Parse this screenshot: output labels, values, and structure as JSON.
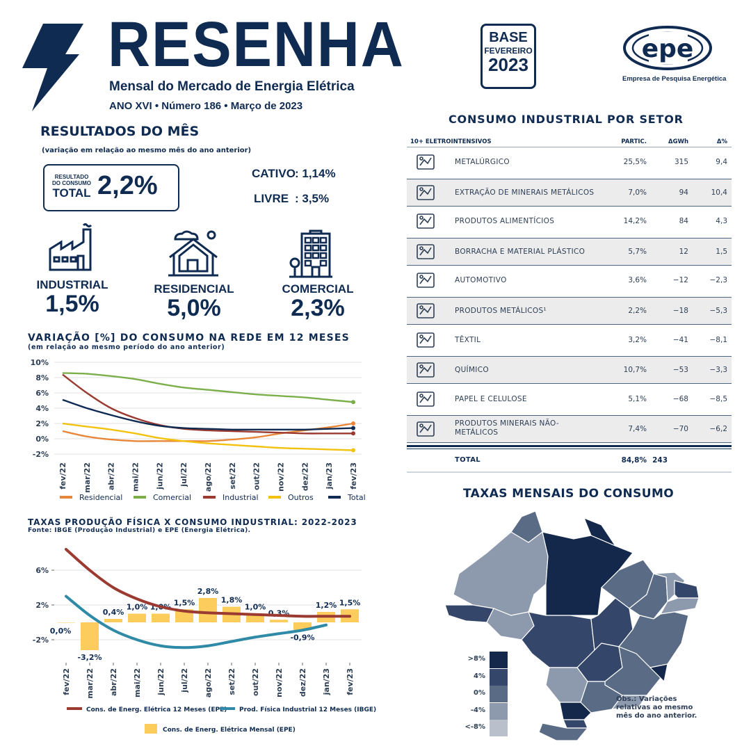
{
  "header": {
    "title": "RESENHA",
    "subtitle": "Mensal do Mercado de Energia Elétrica",
    "issue": "ANO XVI • Número 186 • Março de 2023",
    "base_line1": "BASE",
    "base_line2": "FEVEREIRO",
    "base_line3": "2023",
    "logo_text": "epe",
    "logo_subtitle": "Empresa de Pesquisa Energética"
  },
  "results": {
    "heading": "RESULTADOS DO MÊS",
    "note": "(variação em relação ao mesmo mês do ano anterior)",
    "total_label_small": "RESULTADO DO CONSUMO",
    "total_label_big": "TOTAL",
    "total_value": "2,2%",
    "captive_label": "CATIVO",
    "captive_value": ": 1,14%",
    "free_label": "LIVRE",
    "free_value": ": 3,5%",
    "segments": [
      {
        "name": "INDUSTRIAL",
        "value": "1,5%",
        "icon": "factory-icon"
      },
      {
        "name": "RESIDENCIAL",
        "value": "5,0%",
        "icon": "house-icon"
      },
      {
        "name": "COMERCIAL",
        "value": "2,3%",
        "icon": "building-icon"
      }
    ]
  },
  "line_chart_section": {
    "title": "VARIAÇÃO [%] DO CONSUMO NA REDE EM 12 MESES",
    "subtitle": "(em relação ao mesmo período do ano anterior)"
  },
  "combo_chart_section": {
    "title": "TAXAS PRODUÇÃO FÍSICA X CONSUMO INDUSTRIAL: 2022-2023",
    "subtitle": "Fonte: IBGE (Produção Industrial) e EPE (Energia Elétrica)."
  },
  "chart_data": [
    {
      "type": "line",
      "x": [
        "fev/22",
        "mar/22",
        "abr/22",
        "mai/22",
        "jun/22",
        "jul/22",
        "ago/22",
        "set/22",
        "out/22",
        "nov/22",
        "dez/22",
        "jan/23",
        "fev/23"
      ],
      "ylim": [
        -2,
        10
      ],
      "yticks": [
        "10%",
        "8%",
        "6%",
        "4%",
        "2%",
        "0%",
        "-2%"
      ],
      "series": [
        {
          "name": "Residencial",
          "color": "#e8873a",
          "values": [
            1.0,
            0.3,
            -0.1,
            -0.3,
            -0.3,
            -0.3,
            -0.3,
            -0.1,
            0.2,
            0.7,
            1.1,
            1.5,
            2.0
          ]
        },
        {
          "name": "Comercial",
          "color": "#7aaf4a",
          "values": [
            8.6,
            8.5,
            8.2,
            7.8,
            7.2,
            6.7,
            6.4,
            6.1,
            5.8,
            5.6,
            5.4,
            5.1,
            4.8
          ]
        },
        {
          "name": "Industrial",
          "color": "#9b3a30",
          "values": [
            8.4,
            6.0,
            4.0,
            2.7,
            1.8,
            1.3,
            1.1,
            1.0,
            0.9,
            0.8,
            0.7,
            0.7,
            0.7
          ]
        },
        {
          "name": "Outros",
          "color": "#f2c20f",
          "values": [
            2.0,
            1.6,
            1.2,
            0.7,
            0.1,
            -0.3,
            -0.6,
            -0.8,
            -1.0,
            -1.2,
            -1.3,
            -1.4,
            -1.5
          ]
        },
        {
          "name": "Total",
          "color": "#0f2b52",
          "values": [
            5.1,
            4.0,
            3.1,
            2.3,
            1.7,
            1.4,
            1.3,
            1.2,
            1.2,
            1.2,
            1.2,
            1.3,
            1.4
          ]
        }
      ],
      "grid": true,
      "legend_position": "bottom"
    },
    {
      "type": "bar",
      "x": [
        "fev/22",
        "mar/22",
        "abr/22",
        "mai/22",
        "jun/22",
        "jul/22",
        "ago/22",
        "set/22",
        "out/22",
        "nov/22",
        "dez/22",
        "jan/23",
        "fev/23"
      ],
      "ylim": [
        -4,
        8
      ],
      "yticks": [
        "6%",
        "2%",
        "-2%"
      ],
      "series": [
        {
          "name": "Cons. de Energ. Elétrica Mensal (EPE)",
          "color": "#fccc5c",
          "kind": "bar",
          "values": [
            0.0,
            -3.2,
            0.4,
            1.0,
            1.0,
            1.5,
            2.8,
            1.8,
            1.0,
            0.3,
            -0.9,
            1.2,
            1.5
          ],
          "labels": [
            "0,0%",
            "-3,2%",
            "0,4%",
            "1,0%",
            "1,0%",
            "1,5%",
            "2,8%",
            "1,8%",
            "1,0%",
            "0,3%",
            "-0,9%",
            "1,2%",
            "1,5%"
          ]
        },
        {
          "name": "Cons. de Energ. Elétrica 12 Meses (EPE)",
          "color": "#9b3a30",
          "kind": "line",
          "values": [
            8.4,
            6.0,
            4.0,
            2.7,
            1.8,
            1.3,
            1.1,
            1.0,
            0.9,
            0.8,
            0.7,
            0.7,
            0.7
          ]
        },
        {
          "name": "Prod. Física Industrial 12 Meses (IBGE)",
          "color": "#2e8aa6",
          "kind": "line",
          "values": [
            3.0,
            0.8,
            -0.9,
            -2.0,
            -2.7,
            -2.9,
            -2.7,
            -2.2,
            -1.7,
            -1.3,
            -0.9,
            -0.3,
            null
          ]
        }
      ],
      "grid": true,
      "legend_position": "bottom"
    },
    {
      "type": "table",
      "title": "CONSUMO INDUSTRIAL POR SETOR",
      "columns": [
        "10+ ELETROINTENSIVOS",
        "PARTIC.",
        "ΔGWh",
        "Δ%"
      ],
      "rows": [
        {
          "name": "METALÚRGICO",
          "partic": "25,5%",
          "gwh": "315",
          "pct": "9,4",
          "icon": "metal-press-icon"
        },
        {
          "name": "EXTRAÇÃO DE MINERAIS METÁLICOS",
          "partic": "7,0%",
          "gwh": "94",
          "pct": "10,4",
          "icon": "pickaxe-icon"
        },
        {
          "name": "PRODUTOS ALIMENTÍCIOS",
          "partic": "14,2%",
          "gwh": "84",
          "pct": "4,3",
          "icon": "food-icon"
        },
        {
          "name": "BORRACHA E MATERIAL PLÁSTICO",
          "partic": "5,7%",
          "gwh": "12",
          "pct": "1,5",
          "icon": "tire-icon"
        },
        {
          "name": "AUTOMOTIVO",
          "partic": "3,6%",
          "gwh": "−12",
          "pct": "−2,3",
          "icon": "car-icon"
        },
        {
          "name": "PRODUTOS METÁLICOS¹",
          "partic": "2,2%",
          "gwh": "−18",
          "pct": "−5,3",
          "icon": "steel-beam-icon"
        },
        {
          "name": "TÊXTIL",
          "partic": "3,2%",
          "gwh": "−41",
          "pct": "−8,1",
          "icon": "fabric-icon"
        },
        {
          "name": "QUÍMICO",
          "partic": "10,7%",
          "gwh": "−53",
          "pct": "−3,3",
          "icon": "chemistry-icon"
        },
        {
          "name": "PAPEL E CELULOSE",
          "partic": "5,1%",
          "gwh": "−68",
          "pct": "−8,5",
          "icon": "paper-icon"
        },
        {
          "name": "PRODUTOS MINERAIS NÃO-METÁLICOS",
          "partic": "7,4%",
          "gwh": "−70",
          "pct": "−6,2",
          "icon": "crystal-icon"
        }
      ],
      "total": {
        "name": "TOTAL",
        "partic": "84,8%",
        "gwh": "243"
      }
    }
  ],
  "map": {
    "title": "TAXAS MENSAIS DO CONSUMO",
    "legend": [
      ">8%",
      "4%",
      "0%",
      "-4%",
      "<-8%"
    ],
    "legend_colors": [
      "#13284a",
      "#34476a",
      "#5a6b86",
      "#8d99ad",
      "#b9c0cc"
    ],
    "note": "Obs.: Variações relativas ao mesmo mês do ano anterior."
  }
}
